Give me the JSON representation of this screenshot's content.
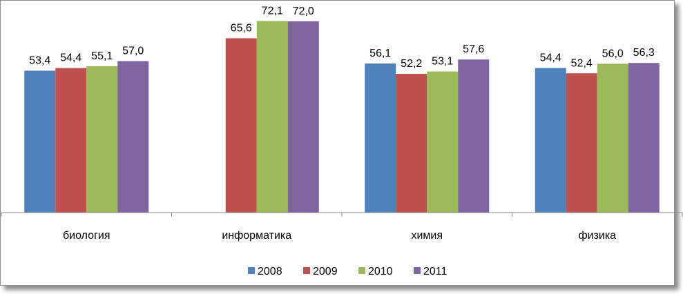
{
  "chart_data": {
    "type": "bar",
    "categories": [
      "биология",
      "информатика",
      "химия",
      "физика"
    ],
    "series": [
      {
        "name": "2008",
        "color": "#4f81bd",
        "values": [
          53.4,
          null,
          56.1,
          54.4
        ],
        "labels": [
          "53,4",
          "",
          "56,1",
          "54,4"
        ]
      },
      {
        "name": "2009",
        "color": "#c0504d",
        "values": [
          54.4,
          65.6,
          52.2,
          52.4
        ],
        "labels": [
          "54,4",
          "65,6",
          "52,2",
          "52,4"
        ]
      },
      {
        "name": "2010",
        "color": "#9bbb59",
        "values": [
          55.1,
          72.1,
          53.1,
          56.0
        ],
        "labels": [
          "55,1",
          "72,1",
          "53,1",
          "56,0"
        ]
      },
      {
        "name": "2011",
        "color": "#8064a2",
        "values": [
          57.0,
          72.0,
          57.6,
          56.3
        ],
        "labels": [
          "57,0",
          "72,0",
          "57,6",
          "56,3"
        ]
      }
    ],
    "ylim": [
      0,
      80
    ],
    "grid": false,
    "legend": "bottom"
  }
}
